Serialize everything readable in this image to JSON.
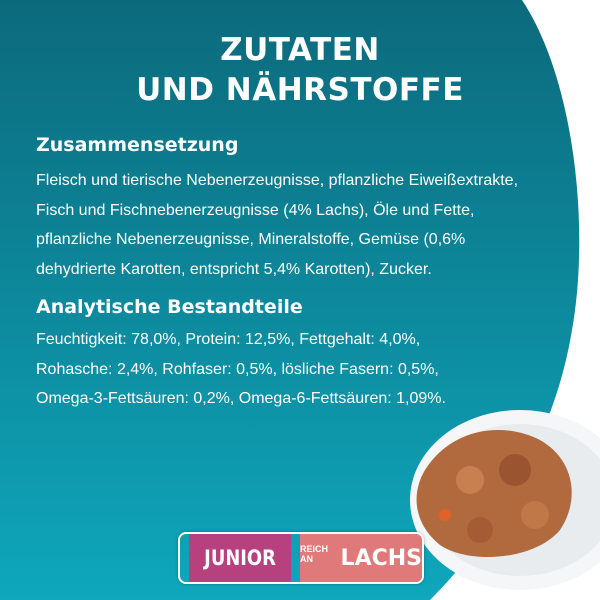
{
  "title_lines": [
    "ZUTATEN",
    "UND NÄHRSTOFFE"
  ],
  "composition": {
    "heading": "Zusammensetzung",
    "lines": [
      "Fleisch und tierische Nebenerzeugnisse, pflanzliche Eiweißextrakte,",
      "Fisch und Fischnebenerzeugnisse (4% Lachs), Öle und Fette,",
      "pflanzliche Nebenerzeugnisse, Mineralstoffe, Gemüse (0,6%",
      "dehydrierte Karotten, entspricht 5,4% Karotten), Zucker."
    ]
  },
  "analysis": {
    "heading": "Analytische Bestandteile",
    "lines": [
      "Feuchtigkeit: 78,0%, Protein: 12,5%, Fettgehalt: 4,0%,",
      "Rohasche: 2,4%, Rohfaser: 0,5%, lösliche Fasern: 0,5%,",
      "Omega-3-Fettsäuren: 0,2%, Omega-6-Fettsäuren: 1,09%."
    ]
  },
  "badge": {
    "left": "JUNIOR",
    "small": "REICH AN",
    "right": "LACHS"
  },
  "colors": {
    "teal_top": "#0c6a7c",
    "teal_bottom": "#0ea7bc",
    "badge_pink": "#b7417f",
    "badge_salmon": "#e07a7a"
  }
}
